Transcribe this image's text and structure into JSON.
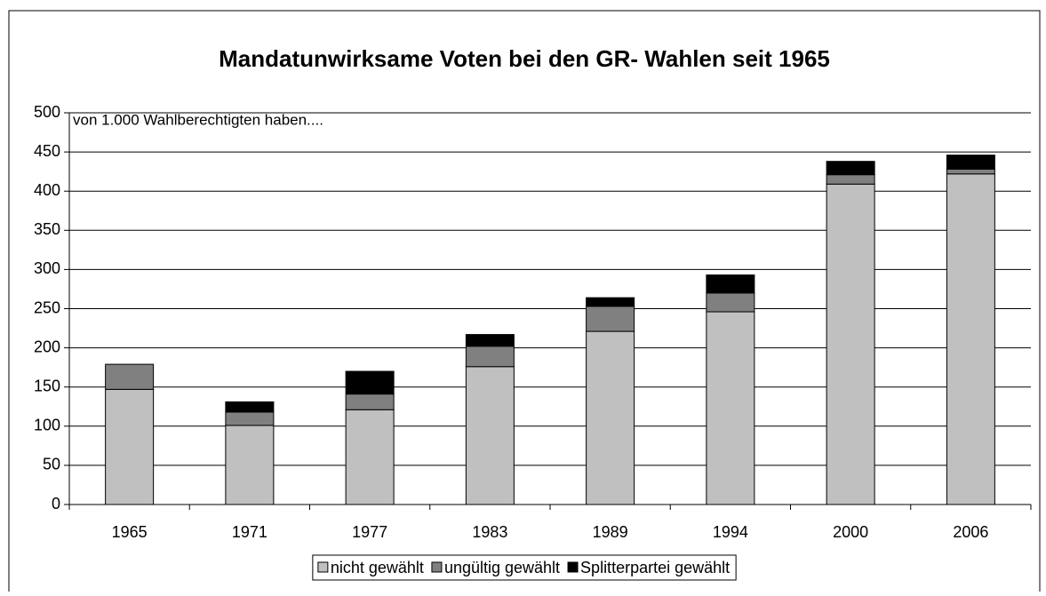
{
  "chart_data": {
    "type": "stacked_bar",
    "title": "Mandatunwirksame Voten bei den GR- Wahlen seit 1965",
    "annotation": "von 1.000 Wahlberechtigten haben....",
    "categories": [
      "1965",
      "1971",
      "1977",
      "1983",
      "1989",
      "1994",
      "2000",
      "2006"
    ],
    "series": [
      {
        "name": "nicht gewählt",
        "color": "#c0c0c0",
        "values": [
          147,
          101,
          121,
          176,
          221,
          246,
          409,
          422
        ]
      },
      {
        "name": "ungültig gewählt",
        "color": "#808080",
        "values": [
          32,
          17,
          20,
          26,
          32,
          24,
          12,
          6
        ]
      },
      {
        "name": "Splitterpartei gewählt",
        "color": "#000000",
        "values": [
          0,
          13,
          29,
          15,
          11,
          23,
          17,
          18
        ]
      }
    ],
    "ylim": [
      0,
      500
    ],
    "yticks": [
      0,
      50,
      100,
      150,
      200,
      250,
      300,
      350,
      400,
      450,
      500
    ],
    "grid": true,
    "legend": "bottom"
  }
}
